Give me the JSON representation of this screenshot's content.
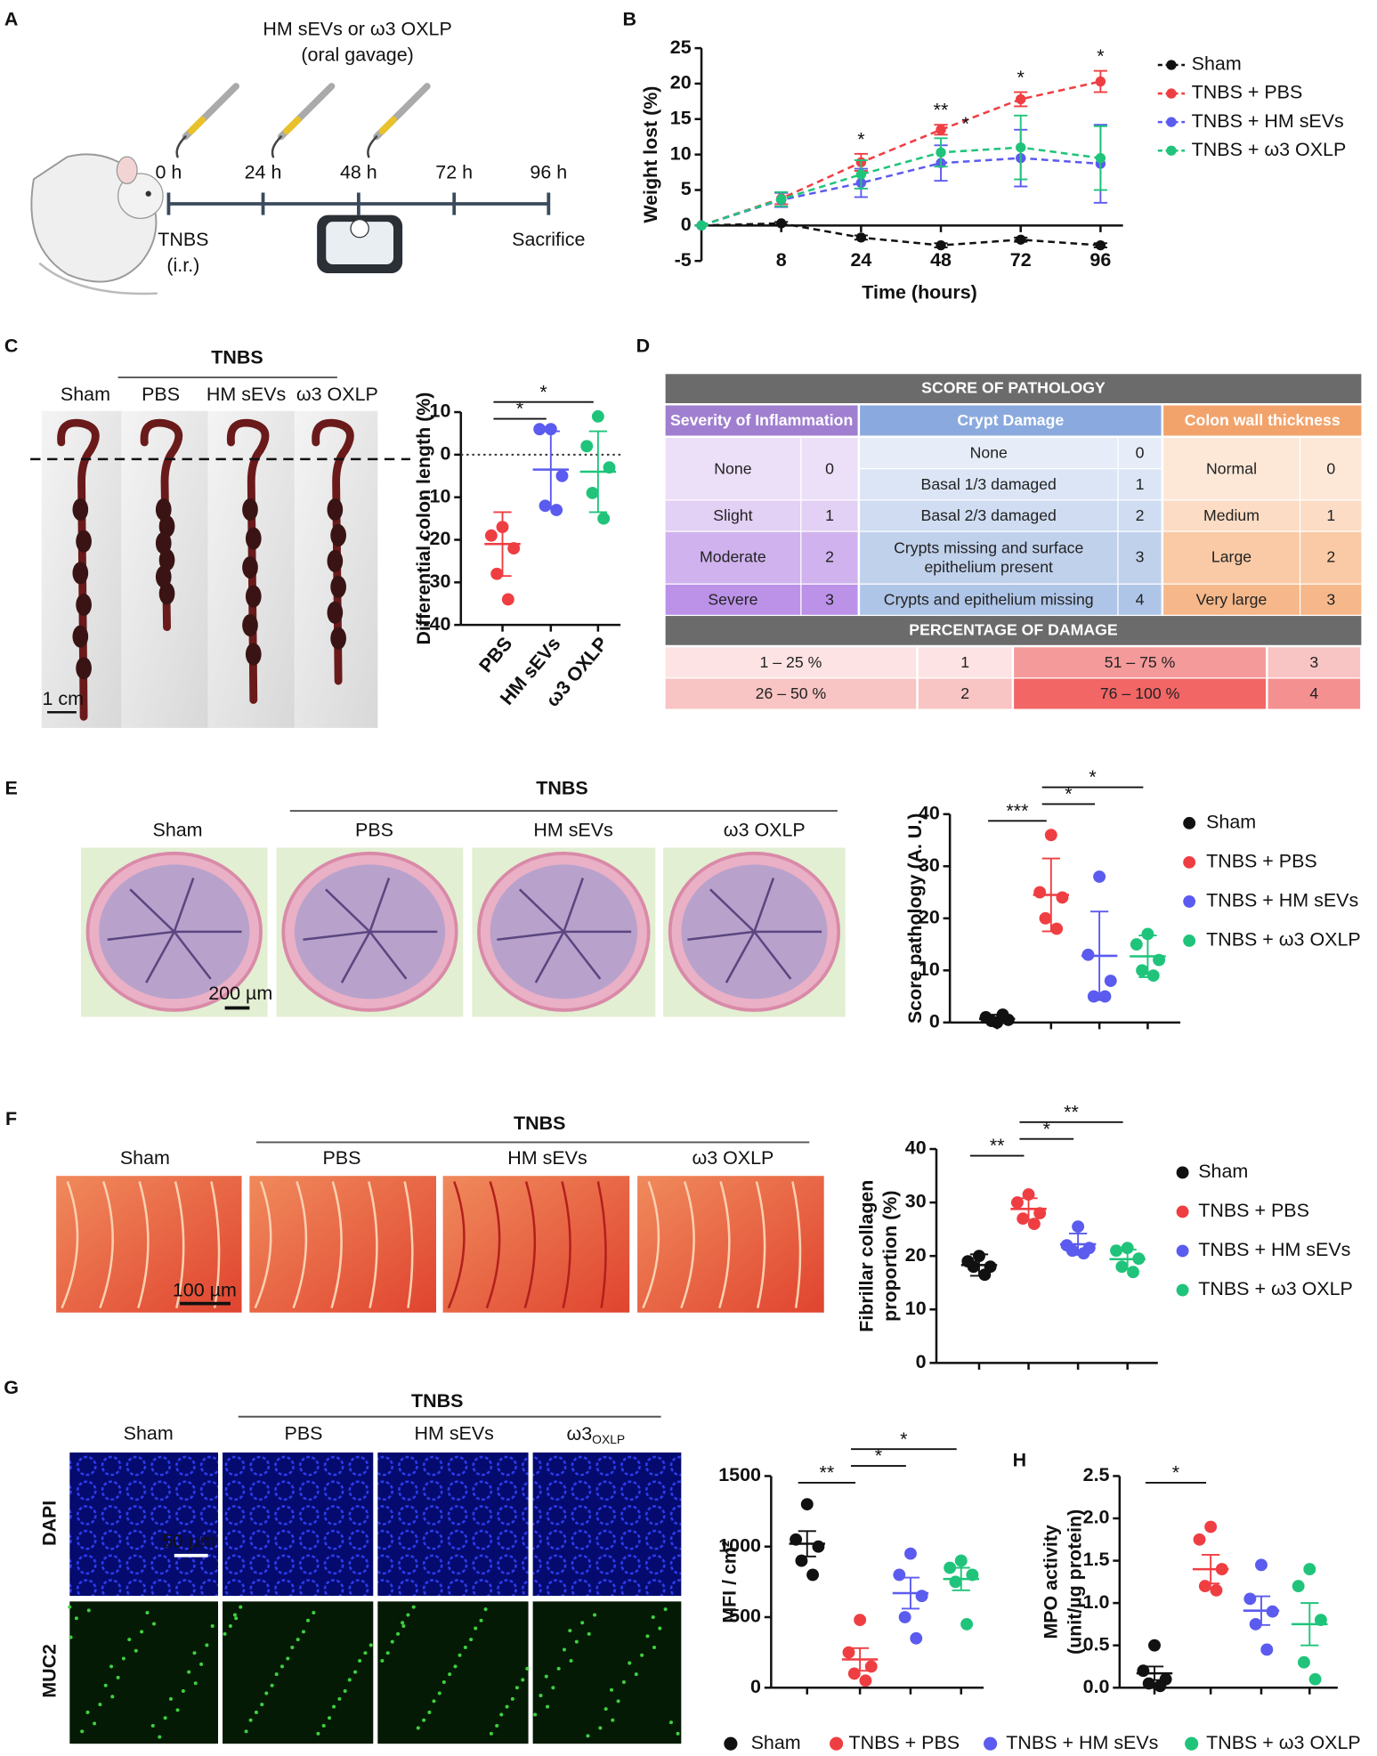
{
  "panels": [
    "A",
    "B",
    "C",
    "D",
    "E",
    "F",
    "G",
    "H"
  ],
  "schematic": {
    "treatment": "HM sEVs or ω3 OXLP",
    "route": "(oral gavage)",
    "times": [
      "0 h",
      "24 h",
      "48 h",
      "72 h",
      "96 h"
    ],
    "induction": "TNBS",
    "induction_route": "(i.r.)",
    "end": "Sacrifice"
  },
  "colon_photos": {
    "group": "TNBS",
    "labels": [
      "Sham",
      "PBS",
      "HM sEVs",
      "ω3 OXLP"
    ],
    "scale": "1 cm"
  },
  "he_images": {
    "group": "TNBS",
    "labels": [
      "Sham",
      "PBS",
      "HM sEVs",
      "ω3 OXLP"
    ],
    "scale": "200 µm"
  },
  "sirius_images": {
    "group": "TNBS",
    "labels": [
      "Sham",
      "PBS",
      "HM sEVs",
      "ω3 OXLP"
    ],
    "scale": "100 µm"
  },
  "if_images": {
    "group": "TNBS",
    "labels": [
      "Sham",
      "PBS",
      "HM sEVs",
      "ω3"
    ],
    "subscript": "OXLP",
    "rows": [
      "DAPI",
      "MUC2"
    ],
    "scale": "50 µm"
  },
  "table": {
    "title": "SCORE OF PATHOLOGY",
    "criteria": [
      {
        "name": "Severity of Inflammation",
        "levels": [
          [
            "None",
            "0"
          ],
          [
            "Slight",
            "1"
          ],
          [
            "Moderate",
            "2"
          ],
          [
            "Severe",
            "3"
          ]
        ]
      },
      {
        "name": "Crypt Damage",
        "levels": [
          [
            "None",
            "0"
          ],
          [
            "Basal 1/3 damaged",
            "1"
          ],
          [
            "Basal 2/3 damaged",
            "2"
          ],
          [
            "Crypts missing and surface epithelium present",
            "3"
          ],
          [
            "Crypts and epithelium missing",
            "4"
          ]
        ]
      },
      {
        "name": "Colon wall thickness",
        "levels": [
          [
            "Normal",
            "0"
          ],
          [
            "Medium",
            "1"
          ],
          [
            "Large",
            "2"
          ],
          [
            "Very large",
            "3"
          ]
        ]
      }
    ],
    "damage_title": "PERCENTAGE OF DAMAGE",
    "damage": [
      [
        "1 – 25 %",
        "1",
        "51 – 75 %",
        "3"
      ],
      [
        "26 – 50 %",
        "2",
        "76 – 100 %",
        "4"
      ]
    ]
  },
  "chart_data": [
    {
      "type": "line",
      "ylabel": "Weight lost (%)",
      "xlabel": "Time (hours)",
      "categories": [
        null,
        "8",
        "24",
        "48",
        "72",
        "96"
      ],
      "ylim": [
        -5,
        25
      ],
      "yticks": [
        -5,
        0,
        5,
        10,
        15,
        20,
        25
      ],
      "dashed": true,
      "series": [
        {
          "name": "Sham",
          "color": "#111111",
          "values": [
            0,
            0.3,
            -1.7,
            -2.8,
            -2.0,
            -2.8
          ],
          "errors": [
            0,
            0.2,
            0.3,
            0.3,
            0.3,
            0.3
          ]
        },
        {
          "name": "TNBS + PBS",
          "color": "#ef3e42",
          "values": [
            0,
            3.8,
            8.9,
            13.5,
            17.8,
            20.3
          ],
          "errors": [
            0,
            0.8,
            1.2,
            0.7,
            1.0,
            1.5
          ]
        },
        {
          "name": "TNBS + HM sEVs",
          "color": "#5b5bef",
          "values": [
            0,
            3.6,
            6.0,
            8.8,
            9.5,
            8.7
          ],
          "errors": [
            0,
            1.0,
            2.0,
            2.5,
            4.0,
            5.5
          ]
        },
        {
          "name": "TNBS + ω3 OXLP",
          "color": "#1fc47a",
          "values": [
            0,
            3.7,
            7.2,
            10.3,
            11.0,
            9.5
          ],
          "errors": [
            0,
            1.0,
            2.0,
            2.0,
            4.5,
            4.5
          ]
        }
      ],
      "annotations": [
        {
          "text": "*",
          "at": 2,
          "color": "#ef3e42"
        },
        {
          "text": "**",
          "at": 3,
          "color": "#ef3e42"
        },
        {
          "text": "*",
          "at": 4,
          "color": "#ef3e42"
        },
        {
          "text": "*",
          "at": 5,
          "color": "#ef3e42"
        },
        {
          "text": "*",
          "at": 3,
          "color": "#1fc47a"
        }
      ]
    },
    {
      "type": "dot",
      "ylabel": "Differential colon length (%)",
      "categories": [
        "PBS",
        "HM sEVs",
        "ω3 OXLP"
      ],
      "ylim": [
        -40,
        10
      ],
      "yticks": [
        -40,
        -30,
        -20,
        -10,
        0,
        10
      ],
      "reference_line": 0,
      "series": [
        {
          "color": "#ef3e42",
          "points": [
            -17,
            -19,
            -22,
            -28,
            -34
          ],
          "mean": -21,
          "error": 7.5
        },
        {
          "color": "#5b5bef",
          "points": [
            6,
            6,
            -5,
            -12,
            -13
          ],
          "mean": -3.5,
          "error": 9
        },
        {
          "color": "#1fc47a",
          "points": [
            9,
            2,
            -3,
            -9,
            -15
          ],
          "mean": -4,
          "error": 9.5
        }
      ],
      "significance": [
        {
          "text": "*",
          "pair": [
            0,
            1
          ]
        },
        {
          "text": "*",
          "pair": [
            0,
            2
          ]
        }
      ]
    },
    {
      "type": "dot",
      "ylabel": "Score pathology (A. U.)",
      "ylim": [
        0,
        40
      ],
      "yticks": [
        0,
        10,
        20,
        30,
        40
      ],
      "series": [
        {
          "name": "Sham",
          "color": "#111111",
          "points": [
            0,
            1,
            0.5,
            0.3,
            1.5
          ],
          "mean": 0.7,
          "error": 0.8
        },
        {
          "name": "TNBS + PBS",
          "color": "#ef3e42",
          "points": [
            36,
            25,
            24,
            20,
            18
          ],
          "mean": 24.5,
          "error": 7
        },
        {
          "name": "TNBS + HM sEVs",
          "color": "#5b5bef",
          "points": [
            28,
            13,
            8,
            5,
            5
          ],
          "mean": 12.8,
          "error": 8.5
        },
        {
          "name": "TNBS + ω3 OXLP",
          "color": "#1fc47a",
          "points": [
            17,
            15,
            12,
            10,
            9
          ],
          "mean": 12.7,
          "error": 4
        }
      ],
      "significance": [
        {
          "text": "***",
          "pair": [
            0,
            1
          ]
        },
        {
          "text": "*",
          "pair": [
            1,
            2
          ]
        },
        {
          "text": "*",
          "pair": [
            1,
            3
          ]
        }
      ]
    },
    {
      "type": "dot",
      "ylabel": [
        "Fibrillar collagen",
        "proportion (%)"
      ],
      "ylim": [
        0,
        40
      ],
      "yticks": [
        0,
        10,
        20,
        30,
        40
      ],
      "series": [
        {
          "name": "Sham",
          "color": "#111111",
          "points": [
            20,
            19,
            18,
            18,
            16.5
          ],
          "mean": 18.3,
          "error": 2
        },
        {
          "name": "TNBS + PBS",
          "color": "#ef3e42",
          "points": [
            31.5,
            30,
            28,
            27,
            26
          ],
          "mean": 28.8,
          "error": 2
        },
        {
          "name": "TNBS + HM sEVs",
          "color": "#5b5bef",
          "points": [
            25.5,
            22,
            21.5,
            21,
            20.5
          ],
          "mean": 22.2,
          "error": 2
        },
        {
          "name": "TNBS + ω3 OXLP",
          "color": "#1fc47a",
          "points": [
            21.5,
            21,
            19.5,
            18,
            17
          ],
          "mean": 19.4,
          "error": 1.8
        }
      ],
      "significance": [
        {
          "text": "**",
          "pair": [
            0,
            1
          ]
        },
        {
          "text": "*",
          "pair": [
            1,
            2
          ]
        },
        {
          "text": "**",
          "pair": [
            1,
            3
          ]
        }
      ]
    },
    {
      "type": "dot",
      "ylabel": "MFI / cm²",
      "ylim": [
        0,
        1500
      ],
      "yticks": [
        0,
        500,
        1000,
        1500
      ],
      "series": [
        {
          "name": "Sham",
          "color": "#111111",
          "points": [
            1300,
            1050,
            1000,
            900,
            800
          ],
          "mean": 1020,
          "error": 90
        },
        {
          "name": "TNBS + PBS",
          "color": "#ef3e42",
          "points": [
            480,
            250,
            150,
            100,
            50
          ],
          "mean": 200,
          "error": 80
        },
        {
          "name": "TNBS + HM sEVs",
          "color": "#5b5bef",
          "points": [
            950,
            800,
            650,
            500,
            350
          ],
          "mean": 670,
          "error": 110
        },
        {
          "name": "TNBS + ω3 OXLP",
          "color": "#1fc47a",
          "points": [
            900,
            850,
            800,
            750,
            450
          ],
          "mean": 770,
          "error": 80
        }
      ],
      "significance": [
        {
          "text": "**",
          "pair": [
            0,
            1
          ]
        },
        {
          "text": "*",
          "pair": [
            1,
            2
          ]
        },
        {
          "text": "*",
          "pair": [
            1,
            3
          ]
        }
      ]
    },
    {
      "type": "dot",
      "ylabel": [
        "MPO activity",
        "(unit/µg protein)"
      ],
      "ylim": [
        0,
        2.5
      ],
      "yticks": [
        {
          "value": 0,
          "label": "0.0"
        },
        0.5,
        {
          "value": 1,
          "label": "1.0"
        },
        1.5,
        {
          "value": 2,
          "label": "2.0"
        },
        2.5
      ],
      "series": [
        {
          "color": "#111111",
          "points": [
            0.5,
            0.2,
            0.1,
            0.05,
            0.02
          ],
          "mean": 0.17,
          "error": 0.08
        },
        {
          "color": "#ef3e42",
          "points": [
            1.9,
            1.75,
            1.4,
            1.2,
            1.15
          ],
          "mean": 1.4,
          "error": 0.17
        },
        {
          "color": "#5b5bef",
          "points": [
            1.45,
            1.05,
            0.9,
            0.75,
            0.45
          ],
          "mean": 0.91,
          "error": 0.17
        },
        {
          "color": "#1fc47a",
          "points": [
            1.4,
            1.2,
            0.8,
            0.3,
            0.1
          ],
          "mean": 0.75,
          "error": 0.25
        }
      ],
      "significance": [
        {
          "text": "*",
          "pair": [
            0,
            1
          ]
        }
      ]
    }
  ]
}
